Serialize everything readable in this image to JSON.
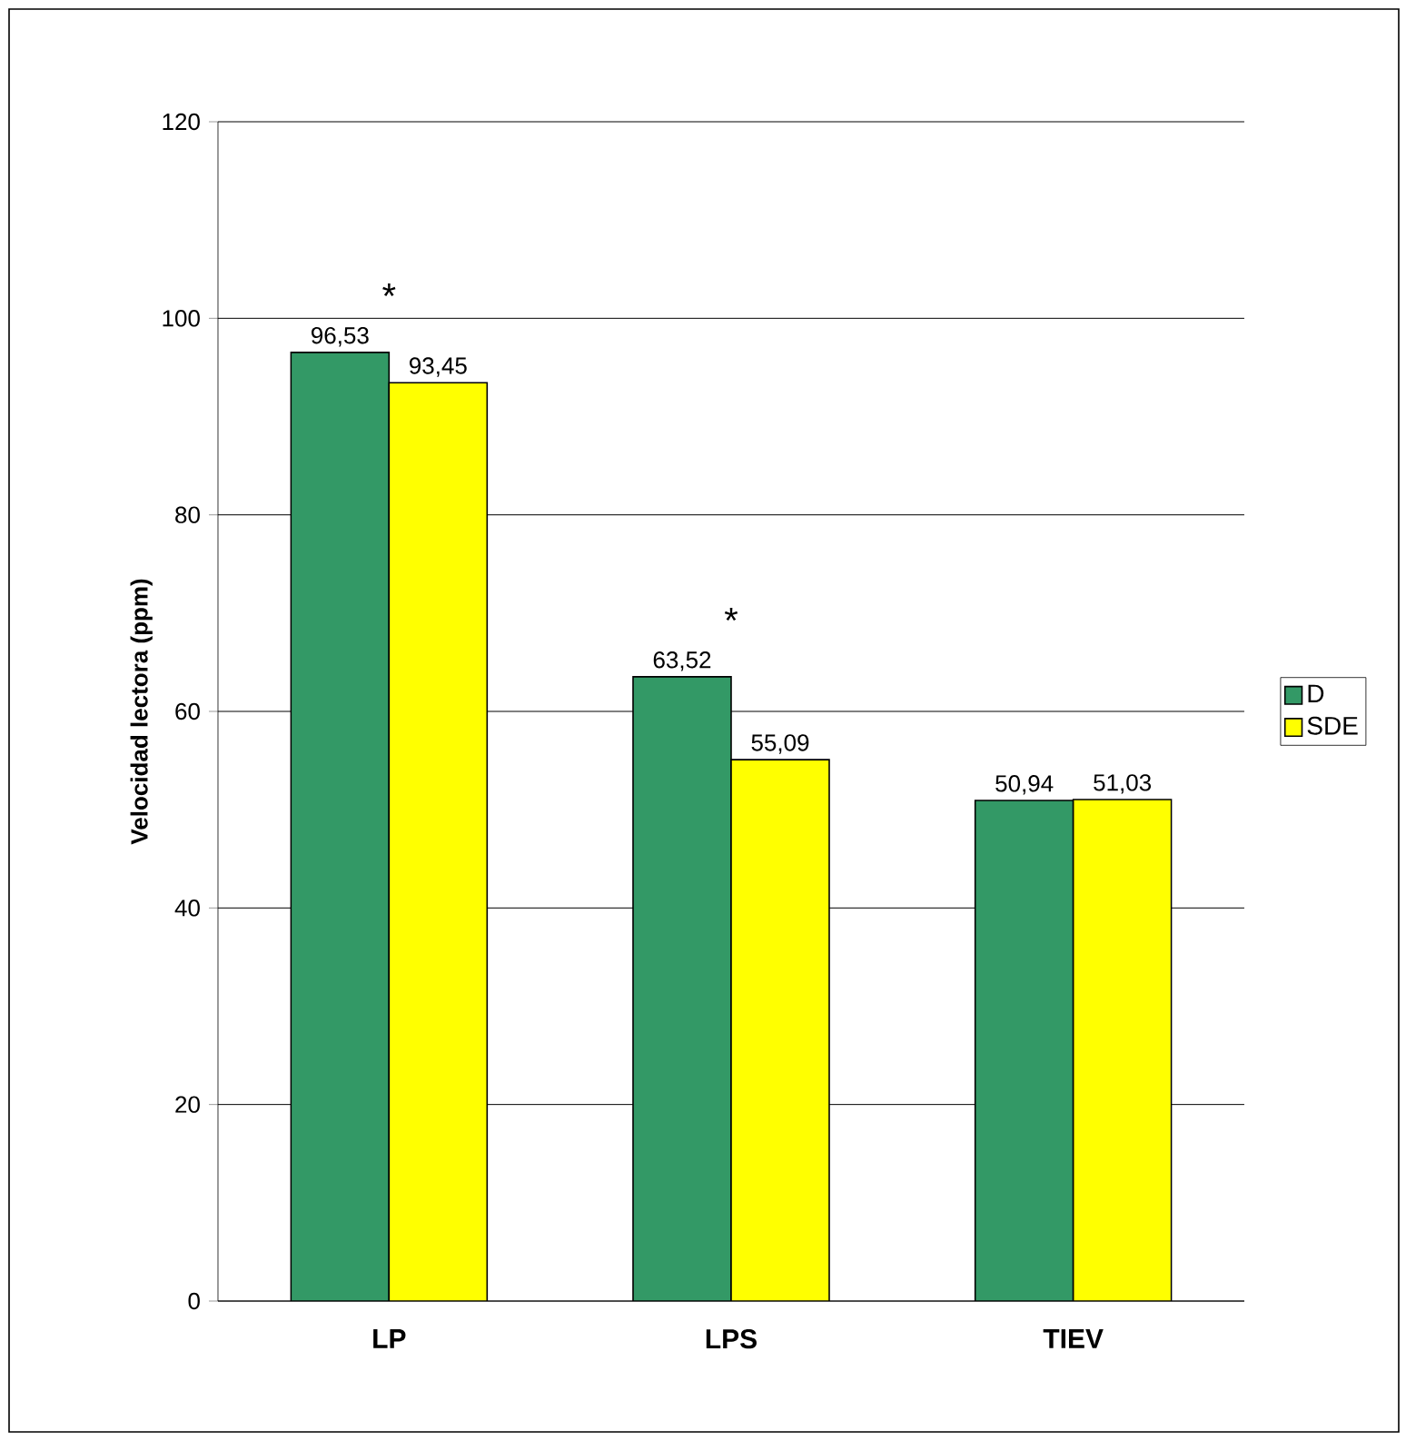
{
  "chart_data": {
    "type": "bar",
    "ylabel": "Velocidad lectora (ppm)",
    "categories": [
      "LP",
      "LPS",
      "TIEV"
    ],
    "series": [
      {
        "name": "D",
        "color": "#339966",
        "values": [
          96.53,
          63.52,
          50.94
        ],
        "value_labels": [
          "96,53",
          "63,52",
          "50,94"
        ]
      },
      {
        "name": "SDE",
        "color": "#ffff00",
        "values": [
          93.45,
          55.09,
          51.03
        ],
        "value_labels": [
          "93,45",
          "55,09",
          "51,03"
        ]
      }
    ],
    "ylim": [
      0,
      120
    ],
    "yticks": [
      0,
      20,
      40,
      60,
      80,
      100,
      120
    ],
    "grid": "y",
    "legend": "right",
    "annotations": [
      "*",
      "*"
    ]
  }
}
